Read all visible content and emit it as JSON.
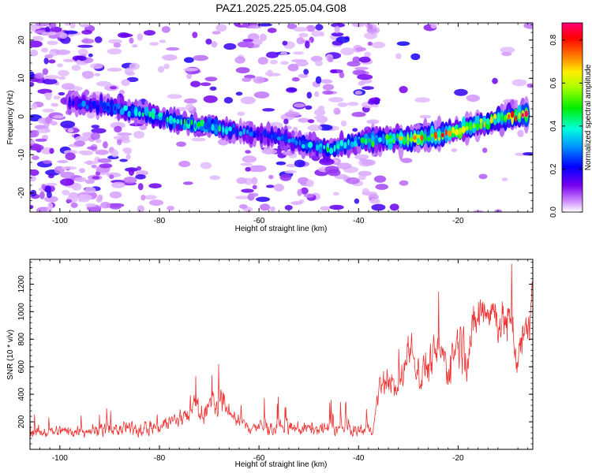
{
  "title": "PAZ1.2025.225.05.04.G08",
  "chart_data": [
    {
      "type": "heatmap",
      "xlabel": "Height of straight line (km)",
      "ylabel": "Frequency (Hz)",
      "xlim": [
        -106,
        -5
      ],
      "ylim": [
        -25,
        24.5
      ],
      "x_ticks": [
        -100,
        -80,
        -60,
        -40,
        -20
      ],
      "y_ticks": [
        -20,
        -10,
        0,
        10,
        20
      ],
      "colorbar": {
        "label": "Normalized spectral amplitude",
        "range": [
          0,
          0.88
        ],
        "ticks": [
          0.0,
          0.2,
          0.4,
          0.6,
          0.8
        ],
        "colormap": "rainbow (white-purple-blue-cyan-green-yellow-red-magenta)"
      },
      "ridge": {
        "description": "Main spectral ridge frequency vs height",
        "x": [
          -98,
          -90,
          -82,
          -76,
          -70,
          -64,
          -58,
          -52,
          -46,
          -40,
          -36,
          -30,
          -24,
          -18,
          -12,
          -6
        ],
        "y": [
          3.5,
          2.5,
          0.5,
          -1.5,
          -2.5,
          -4,
          -5,
          -7,
          -8.5,
          -6.5,
          -6,
          -6,
          -5,
          -3,
          -0.5,
          0.5
        ],
        "peak_amplitude": [
          0.25,
          0.3,
          0.4,
          0.45,
          0.45,
          0.3,
          0.25,
          0.3,
          0.45,
          0.4,
          0.5,
          0.65,
          0.75,
          0.6,
          0.7,
          0.8
        ]
      }
    },
    {
      "type": "line",
      "xlabel": "Height of straight line (km)",
      "ylabel": "SNR (10 * v/v)",
      "xlim": [
        -106,
        -5
      ],
      "ylim": [
        0,
        1380
      ],
      "x_ticks": [
        -100,
        -80,
        -60,
        -40,
        -20
      ],
      "y_ticks": [
        200,
        400,
        600,
        800,
        1000,
        1200
      ],
      "series": [
        {
          "color": "#ee3333",
          "x": [
            -106,
            -100,
            -95,
            -90,
            -85,
            -80,
            -76,
            -74,
            -72,
            -70,
            -68,
            -66,
            -64,
            -60,
            -55,
            -50,
            -45,
            -40,
            -37,
            -36,
            -34,
            -32,
            -30,
            -28,
            -26,
            -24,
            -22,
            -20,
            -18,
            -16,
            -14,
            -12,
            -10,
            -8,
            -6,
            -5
          ],
          "y": [
            120,
            130,
            140,
            140,
            150,
            170,
            220,
            300,
            280,
            300,
            330,
            290,
            180,
            160,
            150,
            150,
            150,
            140,
            150,
            440,
            520,
            400,
            760,
            550,
            620,
            700,
            600,
            800,
            700,
            1000,
            1050,
            950,
            900,
            700,
            950,
            1100
          ],
          "spread": [
            70,
            80,
            80,
            90,
            100,
            120,
            150,
            170,
            180,
            180,
            180,
            150,
            110,
            100,
            90,
            90,
            90,
            80,
            80,
            170,
            170,
            180,
            260,
            250,
            250,
            260,
            280,
            300,
            330,
            300,
            290,
            300,
            330,
            320,
            300,
            250
          ]
        }
      ]
    }
  ]
}
